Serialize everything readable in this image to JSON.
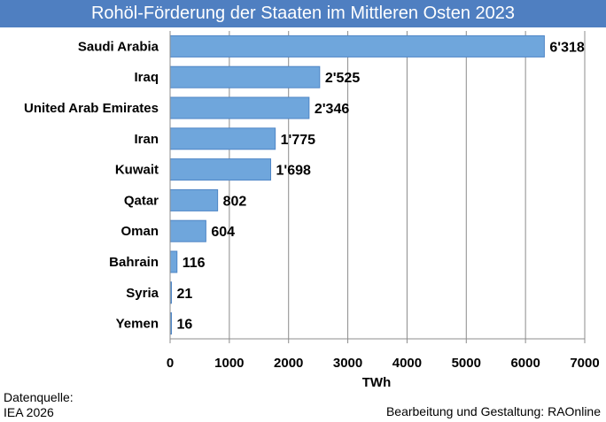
{
  "chart_data": {
    "type": "bar",
    "orientation": "horizontal",
    "title": "Rohöl-Förderung der Staaten im Mittleren Osten 2023",
    "categories": [
      "Saudi Arabia",
      "Iraq",
      "United Arab Emirates",
      "Iran",
      "Kuwait",
      "Qatar",
      "Oman",
      "Bahrain",
      "Syria",
      "Yemen"
    ],
    "values": [
      6318,
      2525,
      2346,
      1775,
      1698,
      802,
      604,
      116,
      21,
      16
    ],
    "value_labels": [
      "6'318",
      "2'525",
      "2'346",
      "1'775",
      "1'698",
      "802",
      "604",
      "116",
      "21",
      "16"
    ],
    "xlabel": "TWh",
    "ylabel": "",
    "xlim": [
      0,
      7000
    ],
    "xticks": [
      0,
      1000,
      2000,
      3000,
      4000,
      5000,
      6000,
      7000
    ],
    "grid": true,
    "bar_color": "#6fa6dc",
    "bar_edge_color": "#4f86c6",
    "title_bg_color": "#4f7fc1"
  },
  "footer": {
    "source_line1": "Datenquelle:",
    "source_line2": "IEA 2026",
    "credit": "Bearbeitung und Gestaltung: RAOnline"
  }
}
